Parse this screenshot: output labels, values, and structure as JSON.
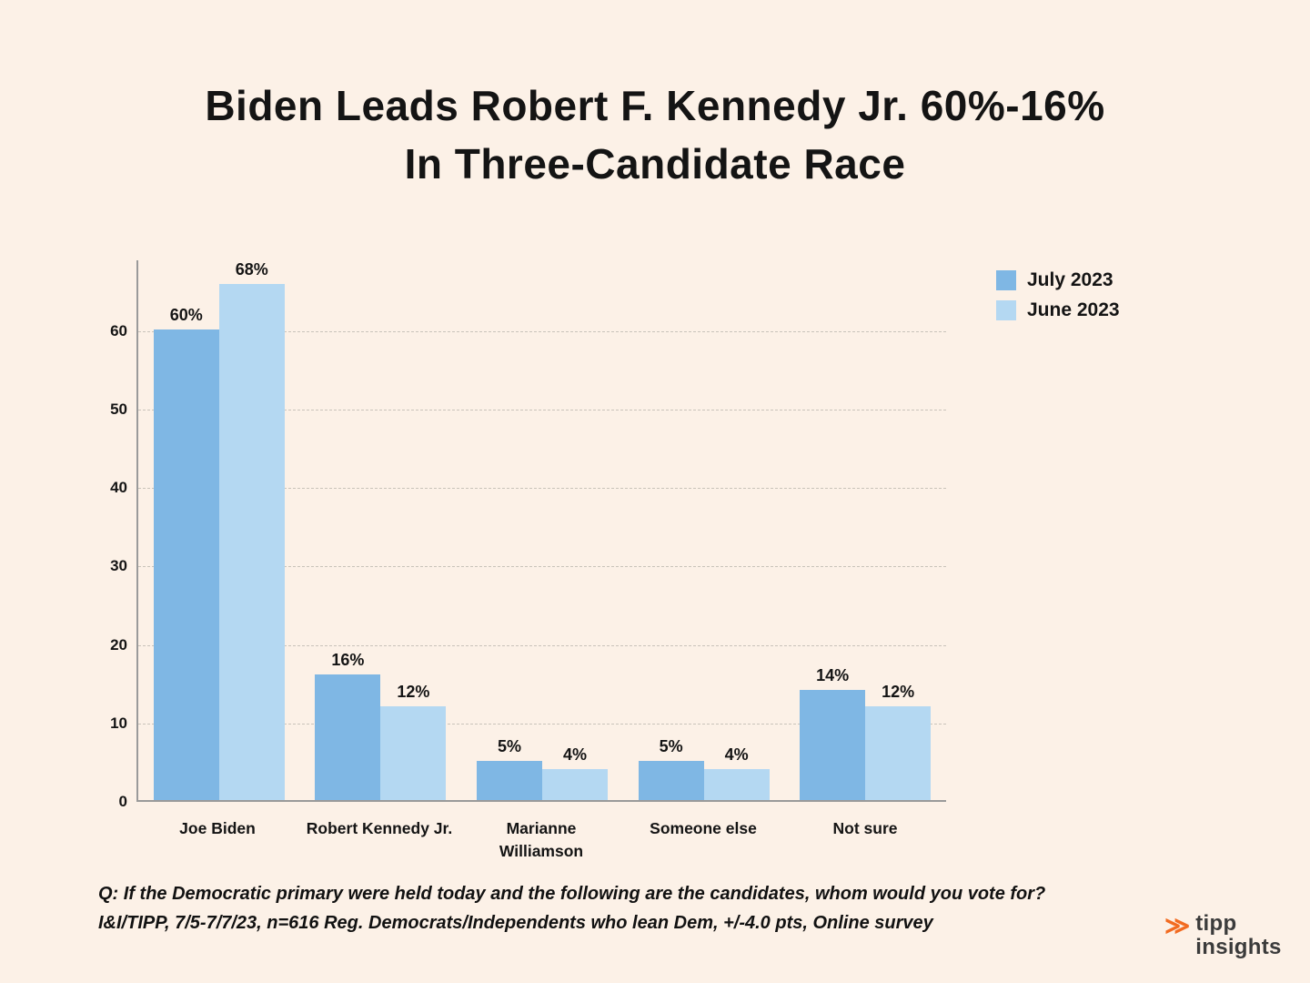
{
  "title": {
    "line1": "Biden Leads Robert F. Kennedy Jr. 60%-16%",
    "line2": "In Three-Candidate Race"
  },
  "chart_data": {
    "type": "bar",
    "categories": [
      "Joe Biden",
      "Robert Kennedy Jr.",
      "Marianne\nWilliamson",
      "Someone else",
      "Not sure"
    ],
    "series": [
      {
        "name": "July 2023",
        "color": "#7FB7E4",
        "values": [
          60,
          16,
          5,
          5,
          14
        ]
      },
      {
        "name": "June 2023",
        "color": "#B4D8F2",
        "values": [
          68,
          12,
          4,
          4,
          12
        ]
      }
    ],
    "value_label_suffix": "%",
    "yticks": [
      0,
      10,
      20,
      30,
      40,
      50,
      60
    ],
    "ylim": [
      0,
      69
    ],
    "grid": "dashed-horizontal",
    "legend_position": "top-right",
    "xlabel": "",
    "ylabel": ""
  },
  "footnote": {
    "line1": "Q:  If the Democratic primary were held today and the following are the candidates, whom would you vote for?",
    "line2": "I&I/TIPP, 7/5-7/7/23, n=616 Reg. Democrats/Independents who lean Dem, +/-4.0 pts, Online survey"
  },
  "logo": {
    "icon": "≫",
    "line1": "tipp",
    "line2": "insights",
    "accent": "#F26B21"
  },
  "colors": {
    "background": "#FCF1E7",
    "text": "#141414",
    "grid": "#C9C3BA",
    "axis": "#9A9A9A"
  }
}
